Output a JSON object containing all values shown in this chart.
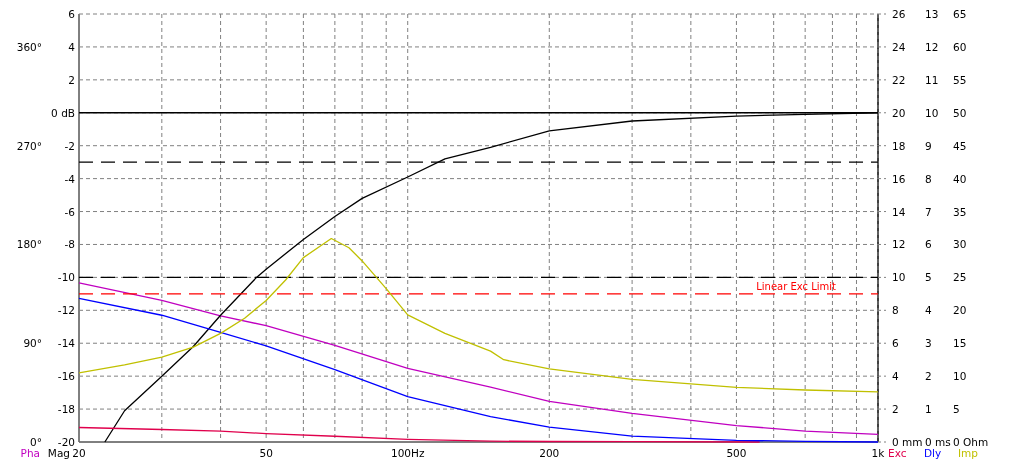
{
  "chart_data": [
    {
      "type": "line",
      "log": "x",
      "grid": true,
      "line_style": "solid",
      "xlim": [
        20,
        1000
      ],
      "xticks": [
        20,
        {
          "value": 30,
          "label": null
        },
        {
          "value": 40,
          "label": null
        },
        50,
        {
          "value": 60,
          "label": null
        },
        {
          "value": 70,
          "label": null
        },
        {
          "value": 80,
          "label": null
        },
        {
          "value": 90,
          "label": null
        },
        {
          "value": 100,
          "label": "100Hz"
        },
        200,
        {
          "value": 300,
          "label": null
        },
        {
          "value": 400,
          "label": null
        },
        500,
        {
          "value": 600,
          "label": null
        },
        {
          "value": 700,
          "label": null
        },
        {
          "value": 800,
          "label": null
        },
        {
          "value": 900,
          "label": null
        },
        {
          "value": 1000,
          "label": "1k"
        }
      ],
      "ylim": [
        -20,
        6
      ],
      "yticks": [
        -20,
        -18,
        -16,
        -14,
        -12,
        -10,
        -8,
        -6,
        -4,
        -2,
        {
          "value": 0,
          "label": "0 dB"
        },
        2,
        4,
        6
      ],
      "y2lim": [
        0,
        390
      ],
      "y2ticks": [
        {
          "value": 0,
          "label": "0°"
        },
        {
          "value": 90,
          "label": "90°"
        },
        {
          "value": 180,
          "label": "180°"
        },
        {
          "value": 270,
          "label": "270°"
        },
        {
          "value": 360,
          "label": "360°"
        }
      ],
      "ylabel": "Mag",
      "y2label": "Pha",
      "ref_lines": [
        {
          "axis": "y",
          "value": 0,
          "color": "#000000",
          "line_style": "solid"
        },
        {
          "axis": "y",
          "value": -3,
          "color": "#000000",
          "line_style": "dashed"
        },
        {
          "axis": "y",
          "value": -10,
          "color": "#000000",
          "line_style": "dashed"
        }
      ],
      "series": [
        {
          "axis": "y2",
          "color": "#c000c0",
          "x": [
            20,
            30,
            40,
            50,
            70,
            100,
            150,
            200,
            300,
            500,
            700,
            1000
          ],
          "values": [
            145,
            129,
            115,
            106,
            88,
            67,
            50,
            37,
            26,
            15,
            10,
            7
          ]
        },
        {
          "color": "#000000",
          "x": [
            22.7,
            25,
            30,
            35,
            40,
            47.7,
            50,
            60,
            70,
            80,
            100,
            120,
            150,
            200,
            300,
            500,
            700,
            1000
          ],
          "values": [
            -20,
            -18.1,
            -16,
            -14.2,
            -12.3,
            -10,
            -9.5,
            -7.7,
            -6.3,
            -5.2,
            -3.9,
            -2.8,
            -2.1,
            -1.1,
            -0.5,
            -0.2,
            -0.1,
            0
          ]
        }
      ]
    },
    {
      "type": "line",
      "log": "x",
      "tick_labels": "y",
      "line_style": "solid",
      "xlim": [
        20,
        1000
      ],
      "ylim": [
        0,
        26
      ],
      "yticks": [
        {
          "value": 0,
          "label": "0 mm"
        },
        2,
        4,
        6,
        8,
        10,
        12,
        14,
        16,
        18,
        20,
        22,
        24,
        26
      ],
      "y2lim": [
        0,
        13
      ],
      "y2ticks": [
        {
          "value": 0,
          "label": "0 ms"
        },
        1,
        2,
        3,
        4,
        5,
        6,
        7,
        8,
        9,
        10,
        11,
        12,
        13
      ],
      "y3lim": [
        0,
        65
      ],
      "y3ticks": [
        {
          "value": 0,
          "label": "0 Ohm"
        },
        5,
        10,
        15,
        20,
        25,
        30,
        35,
        40,
        45,
        50,
        55,
        60,
        65
      ],
      "ylabel": "Exc",
      "y2label": "Dly",
      "y3label": "Imp",
      "ref_lines": [
        {
          "axis": "y",
          "value": 9,
          "label": "Linear Exc Limit",
          "color": "#ff0000",
          "line_style": "dashed"
        }
      ],
      "series": [
        {
          "color": "#e0004c",
          "x": [
            20,
            30,
            40,
            50,
            70,
            100,
            150,
            200,
            300,
            560
          ],
          "values": [
            0.88,
            0.76,
            0.66,
            0.51,
            0.35,
            0.16,
            0.05,
            0.03,
            0.02,
            0
          ]
        },
        {
          "axis": "y2",
          "color": "#0000ff",
          "x": [
            20,
            30,
            40,
            50,
            70,
            100,
            150,
            200,
            300,
            500,
            700,
            1000
          ],
          "values": [
            4.36,
            3.85,
            3.33,
            2.92,
            2.2,
            1.38,
            0.77,
            0.45,
            0.18,
            0.05,
            0.02,
            0
          ]
        },
        {
          "axis": "y3",
          "color": "#c0c000",
          "x": [
            20,
            25,
            30,
            35,
            40,
            45,
            50,
            55,
            60,
            68.8,
            75,
            80,
            90,
            100,
            120,
            150,
            160,
            200,
            300,
            500,
            700,
            1000
          ],
          "values": [
            10.5,
            11.7,
            12.9,
            14.4,
            16.5,
            18.8,
            21.5,
            24.6,
            28,
            30.9,
            29.5,
            27.5,
            23.3,
            19.3,
            16.5,
            13.8,
            12.5,
            11.1,
            9.5,
            8.3,
            7.9,
            7.6
          ]
        }
      ]
    }
  ]
}
